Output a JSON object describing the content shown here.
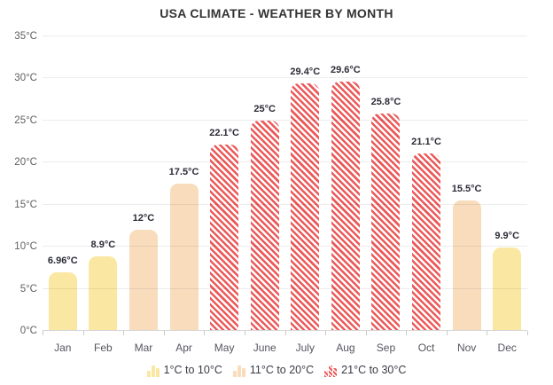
{
  "chart_data": {
    "type": "bar",
    "title": "USA CLIMATE - WEATHER BY MONTH",
    "categories": [
      "Jan",
      "Feb",
      "Mar",
      "Apr",
      "May",
      "June",
      "July",
      "Aug",
      "Sep",
      "Oct",
      "Nov",
      "Dec"
    ],
    "values": [
      6.96,
      8.9,
      12,
      17.5,
      22.1,
      25,
      29.4,
      29.6,
      25.8,
      21.1,
      15.5,
      9.9
    ],
    "value_labels": [
      "6.96°C",
      "8.9°C",
      "12°C",
      "17.5°C",
      "22.1°C",
      "25°C",
      "29.4°C",
      "29.6°C",
      "25.8°C",
      "21.1°C",
      "15.5°C",
      "9.9°C"
    ],
    "xlabel": "",
    "ylabel": "",
    "ylim": [
      0,
      35
    ],
    "ytick_step": 5,
    "ytick_labels": [
      "0°C",
      "5°C",
      "10°C",
      "15°C",
      "20°C",
      "25°C",
      "30°C",
      "35°C"
    ],
    "grid": "horizontal",
    "legend_position": "bottom",
    "series_ranges": [
      {
        "label": "1°C to 10°C",
        "max": 10,
        "color": "#fae8a2",
        "pattern": "solid"
      },
      {
        "label": "11°C to 20°C",
        "max": 20,
        "color": "#f8dcbc",
        "pattern": "solid"
      },
      {
        "label": "21°C to 30°C",
        "max": 30,
        "color": "#ec5a5a",
        "pattern": "diagonal-stripes"
      }
    ]
  }
}
